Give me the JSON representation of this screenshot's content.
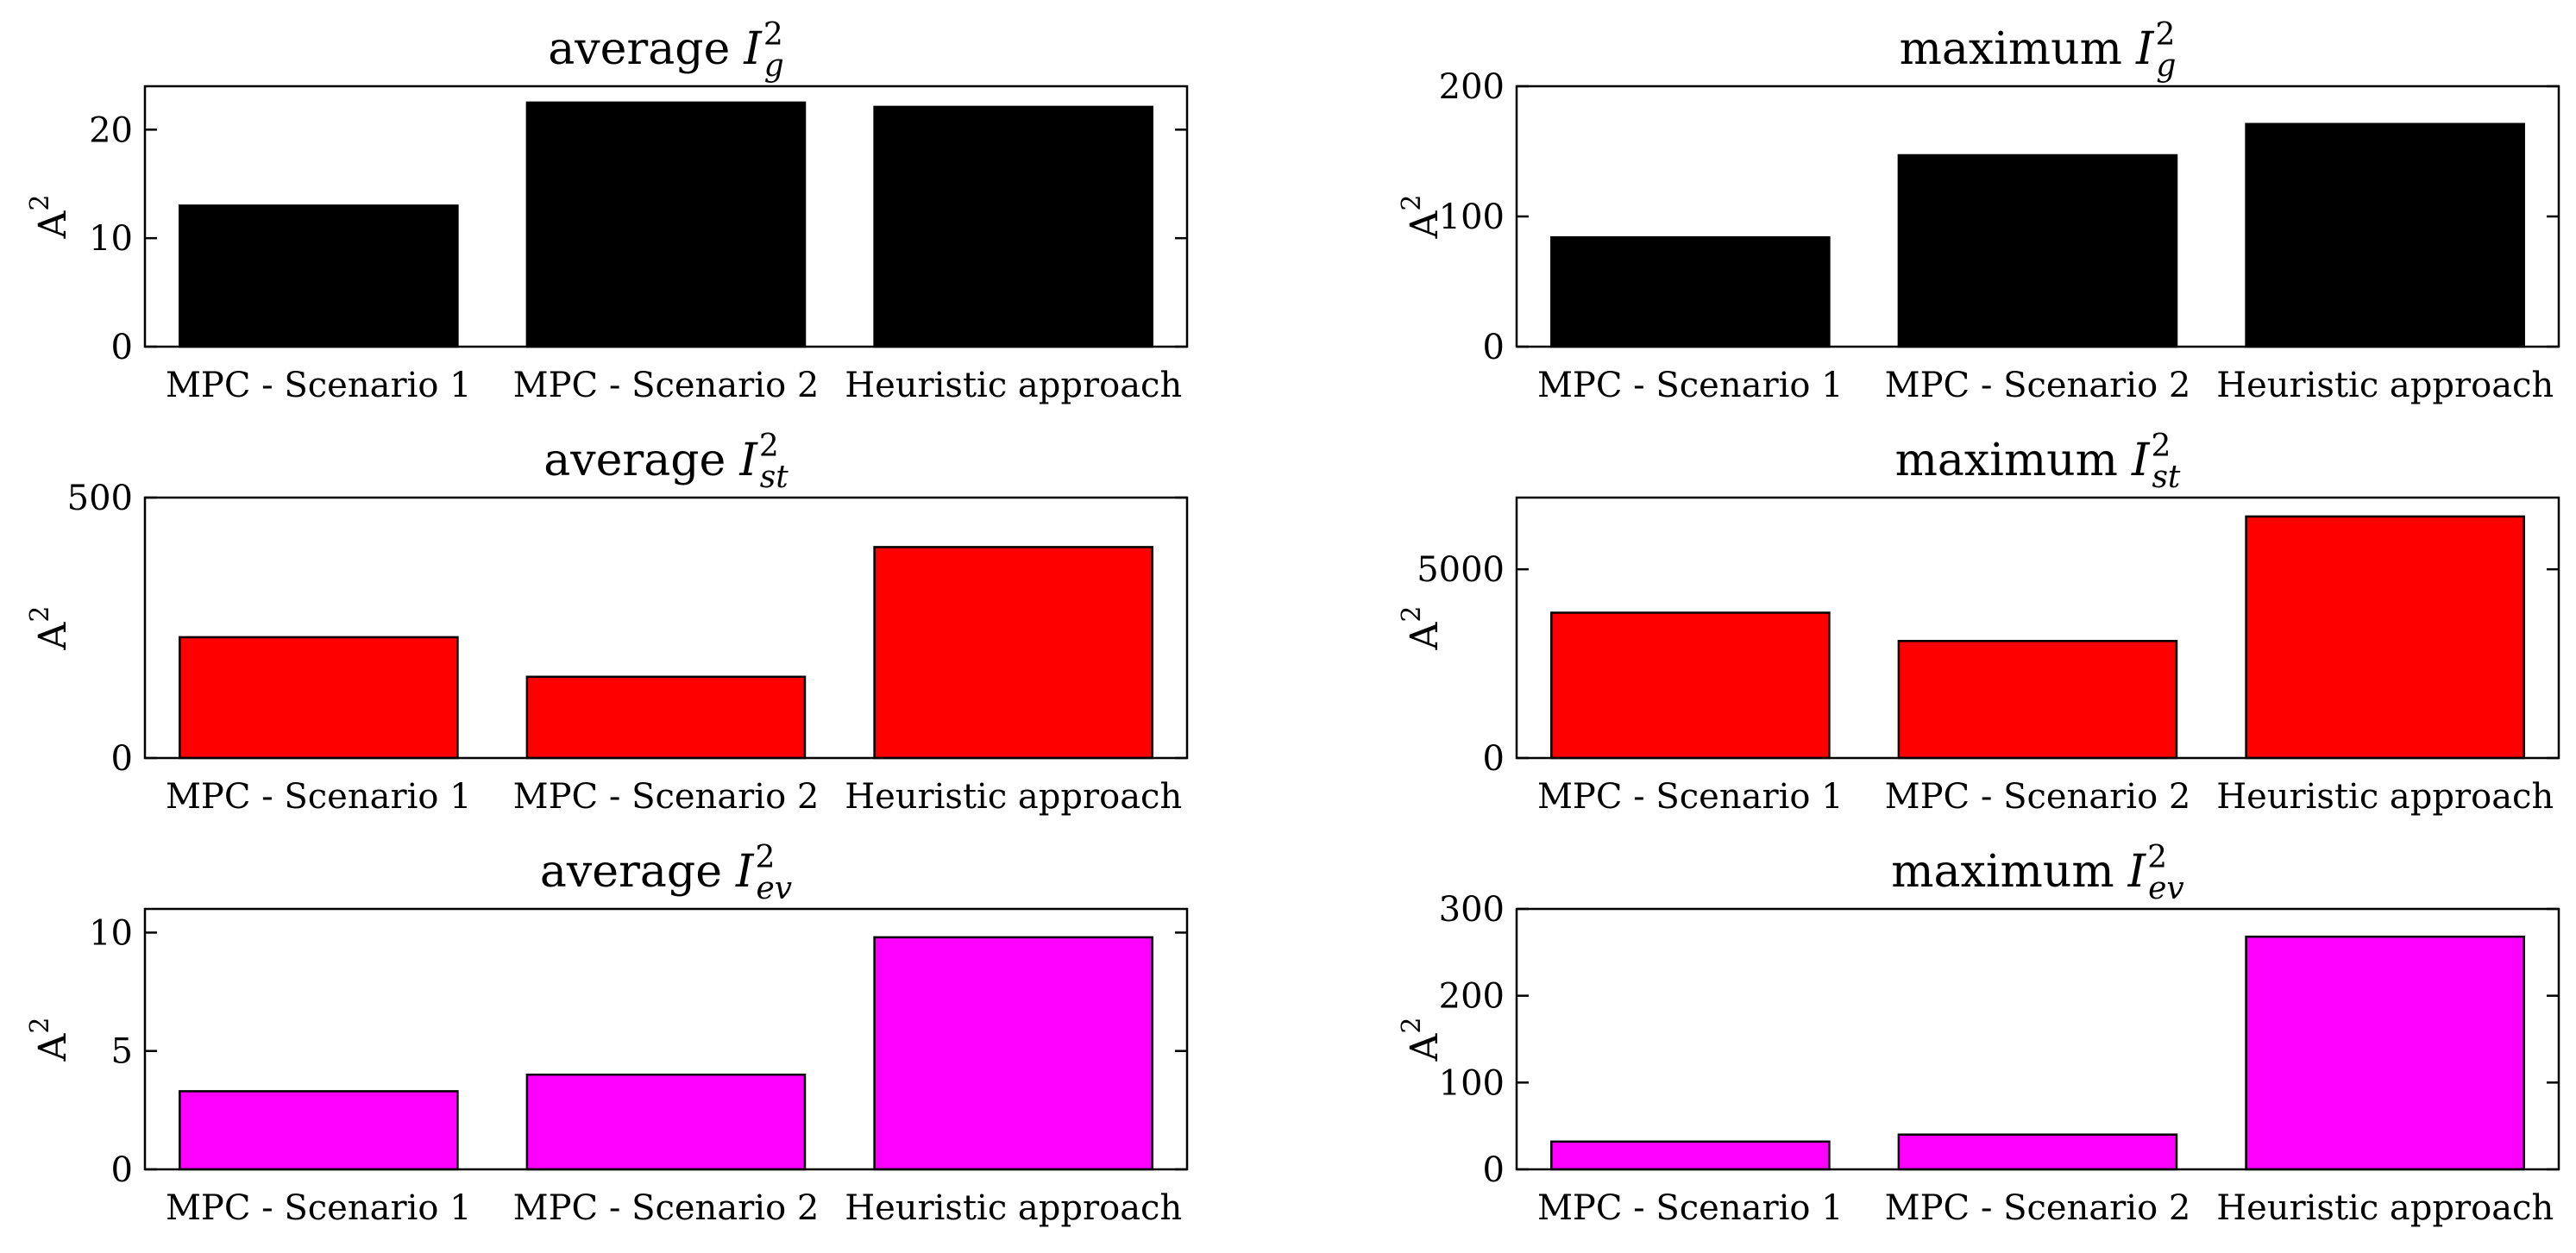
{
  "chart_data": [
    {
      "type": "bar",
      "title_prefix": "average",
      "title_var": "I",
      "title_sup": "2",
      "title_sub": "g",
      "ylabel": "A",
      "ylabel_sup": "2",
      "categories": [
        "MPC - Scenario 1",
        "MPC - Scenario 2",
        "Heuristic approach"
      ],
      "values": [
        13.0,
        22.5,
        22.1
      ],
      "ylim": [
        0,
        24
      ],
      "yticks": [
        0,
        10,
        20
      ],
      "bar_color": "#000000"
    },
    {
      "type": "bar",
      "title_prefix": "maximum",
      "title_var": "I",
      "title_sup": "2",
      "title_sub": "g",
      "ylabel": "A",
      "ylabel_sup": "2",
      "categories": [
        "MPC - Scenario 1",
        "MPC - Scenario 2",
        "Heuristic approach"
      ],
      "values": [
        84,
        147,
        171
      ],
      "ylim": [
        0,
        200
      ],
      "yticks": [
        0,
        100,
        200
      ],
      "bar_color": "#000000"
    },
    {
      "type": "bar",
      "title_prefix": "average",
      "title_var": "I",
      "title_sup": "2",
      "title_sub": "st",
      "ylabel": "A",
      "ylabel_sup": "2",
      "categories": [
        "MPC - Scenario 1",
        "MPC - Scenario 2",
        "Heuristic approach"
      ],
      "values": [
        232,
        156,
        405
      ],
      "ylim": [
        0,
        500
      ],
      "yticks": [
        0,
        500
      ],
      "bar_color": "#ff0000"
    },
    {
      "type": "bar",
      "title_prefix": "maximum",
      "title_var": "I",
      "title_sup": "2",
      "title_sub": "st",
      "ylabel": "A",
      "ylabel_sup": "2",
      "categories": [
        "MPC - Scenario 1",
        "MPC - Scenario 2",
        "Heuristic approach"
      ],
      "values": [
        3850,
        3100,
        6400
      ],
      "ylim": [
        0,
        6900
      ],
      "yticks": [
        0,
        5000
      ],
      "bar_color": "#ff0000"
    },
    {
      "type": "bar",
      "title_prefix": "average",
      "title_var": "I",
      "title_sup": "2",
      "title_sub": "ev",
      "ylabel": "A",
      "ylabel_sup": "2",
      "categories": [
        "MPC - Scenario 1",
        "MPC - Scenario 2",
        "Heuristic approach"
      ],
      "values": [
        3.3,
        4.0,
        9.8
      ],
      "ylim": [
        0,
        11
      ],
      "yticks": [
        0,
        5,
        10
      ],
      "bar_color": "#ff00ff"
    },
    {
      "type": "bar",
      "title_prefix": "maximum",
      "title_var": "I",
      "title_sup": "2",
      "title_sub": "ev",
      "ylabel": "A",
      "ylabel_sup": "2",
      "categories": [
        "MPC - Scenario 1",
        "MPC - Scenario 2",
        "Heuristic approach"
      ],
      "values": [
        32,
        40,
        268
      ],
      "ylim": [
        0,
        300
      ],
      "yticks": [
        0,
        100,
        200,
        300
      ],
      "bar_color": "#ff00ff"
    }
  ]
}
